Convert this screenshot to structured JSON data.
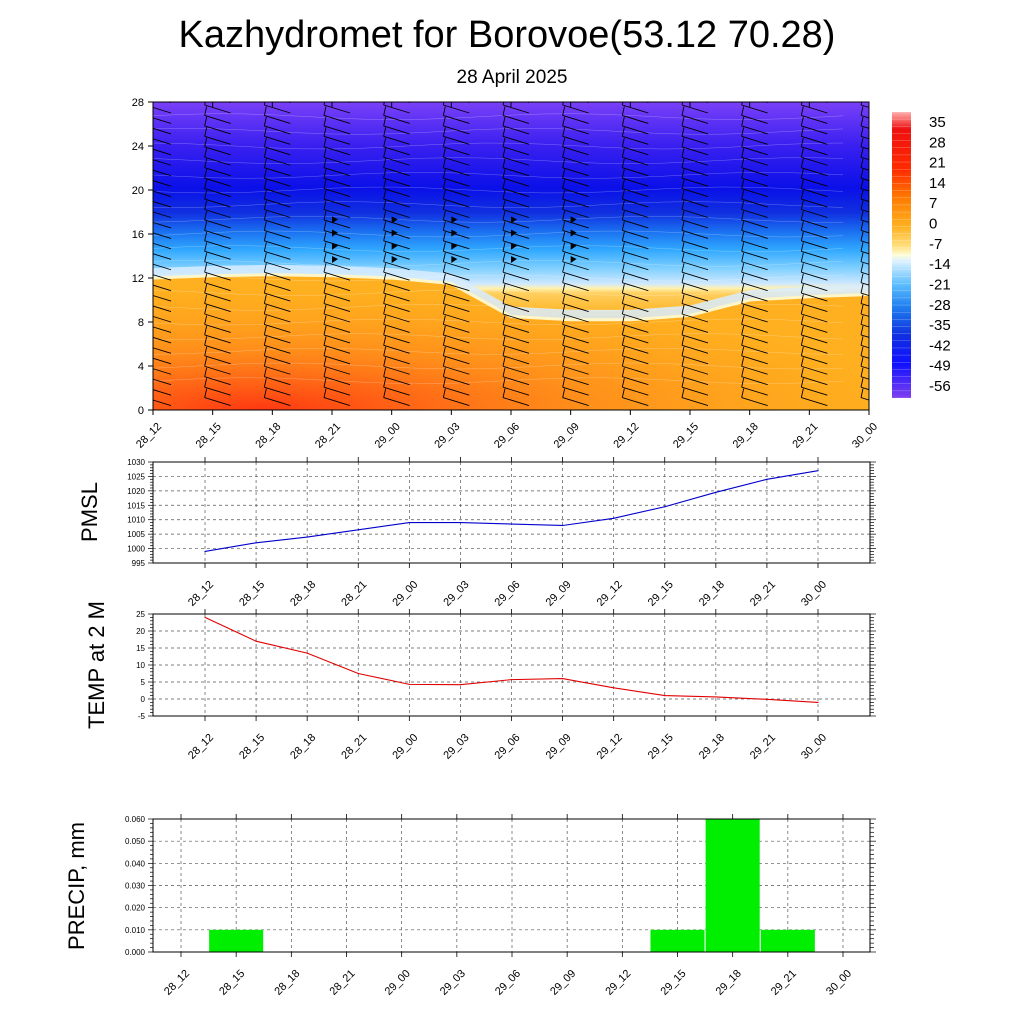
{
  "title": "Kazhydromet for Borovoe(53.12 70.28)",
  "subtitle": "28 April 2025",
  "time_labels": [
    "28_12",
    "28_15",
    "28_18",
    "28_21",
    "29_00",
    "29_03",
    "29_06",
    "29_09",
    "29_12",
    "29_15",
    "29_18",
    "29_21",
    "30_00"
  ],
  "colors": {
    "pmsl_line": "#0000cc",
    "temp_line": "#e00000",
    "precip_bar": "#00ee00"
  },
  "chart_data": [
    {
      "type": "heatmap",
      "name": "vertical-section",
      "x": [
        "28_12",
        "28_15",
        "28_18",
        "28_21",
        "29_00",
        "29_03",
        "29_06",
        "29_09",
        "29_12",
        "29_15",
        "29_18",
        "29_21",
        "30_00"
      ],
      "ylim": [
        0,
        28
      ],
      "yticks": [
        0,
        4,
        8,
        12,
        16,
        20,
        24,
        28
      ],
      "colorbar_ticks": [
        35,
        28,
        21,
        14,
        7,
        0,
        -7,
        -14,
        -21,
        -28,
        -35,
        -42,
        -49,
        -56
      ],
      "freezing_level": [
        12.0,
        12.2,
        12.3,
        12.2,
        12.0,
        11.5,
        8.5,
        8.2,
        8.2,
        8.6,
        10.0,
        10.3,
        10.5
      ],
      "wind_barbs": true
    },
    {
      "type": "line",
      "ylabel": "PMSL",
      "x": [
        "28_12",
        "28_15",
        "28_18",
        "28_21",
        "29_00",
        "29_03",
        "29_06",
        "29_09",
        "29_12",
        "29_15",
        "29_18",
        "29_21",
        "30_00"
      ],
      "values": [
        999,
        1002,
        1004,
        1006.5,
        1009,
        1009,
        1008.5,
        1008,
        1010.5,
        1014.5,
        1019.5,
        1024,
        1027
      ],
      "ylim": [
        995,
        1030
      ],
      "yticks": [
        995,
        1000,
        1005,
        1010,
        1015,
        1020,
        1025,
        1030
      ],
      "grid": true
    },
    {
      "type": "line",
      "ylabel": "TEMP at 2 M",
      "x": [
        "28_12",
        "28_15",
        "28_18",
        "28_21",
        "29_00",
        "29_03",
        "29_06",
        "29_09",
        "29_12",
        "29_15",
        "29_18",
        "29_21",
        "30_00"
      ],
      "values": [
        24,
        17,
        13.5,
        7.5,
        4.3,
        4.2,
        5.7,
        6,
        3.3,
        1,
        0.6,
        -0.1,
        -1
      ],
      "ylim": [
        -5,
        25
      ],
      "yticks": [
        -5,
        0,
        5,
        10,
        15,
        20,
        25
      ],
      "grid": true
    },
    {
      "type": "bar",
      "ylabel": "PRECIP, mm",
      "x": [
        "28_12",
        "28_15",
        "28_18",
        "28_21",
        "29_00",
        "29_03",
        "29_06",
        "29_09",
        "29_12",
        "29_15",
        "29_18",
        "29_21",
        "30_00"
      ],
      "values": [
        0,
        0.01,
        0,
        0,
        0,
        0,
        0,
        0,
        0,
        0.01,
        0.06,
        0.01,
        0
      ],
      "ylim": [
        0,
        0.06
      ],
      "yticks": [
        "0.000",
        "0.010",
        "0.020",
        "0.030",
        "0.040",
        "0.050",
        "0.060"
      ],
      "grid": true
    }
  ]
}
